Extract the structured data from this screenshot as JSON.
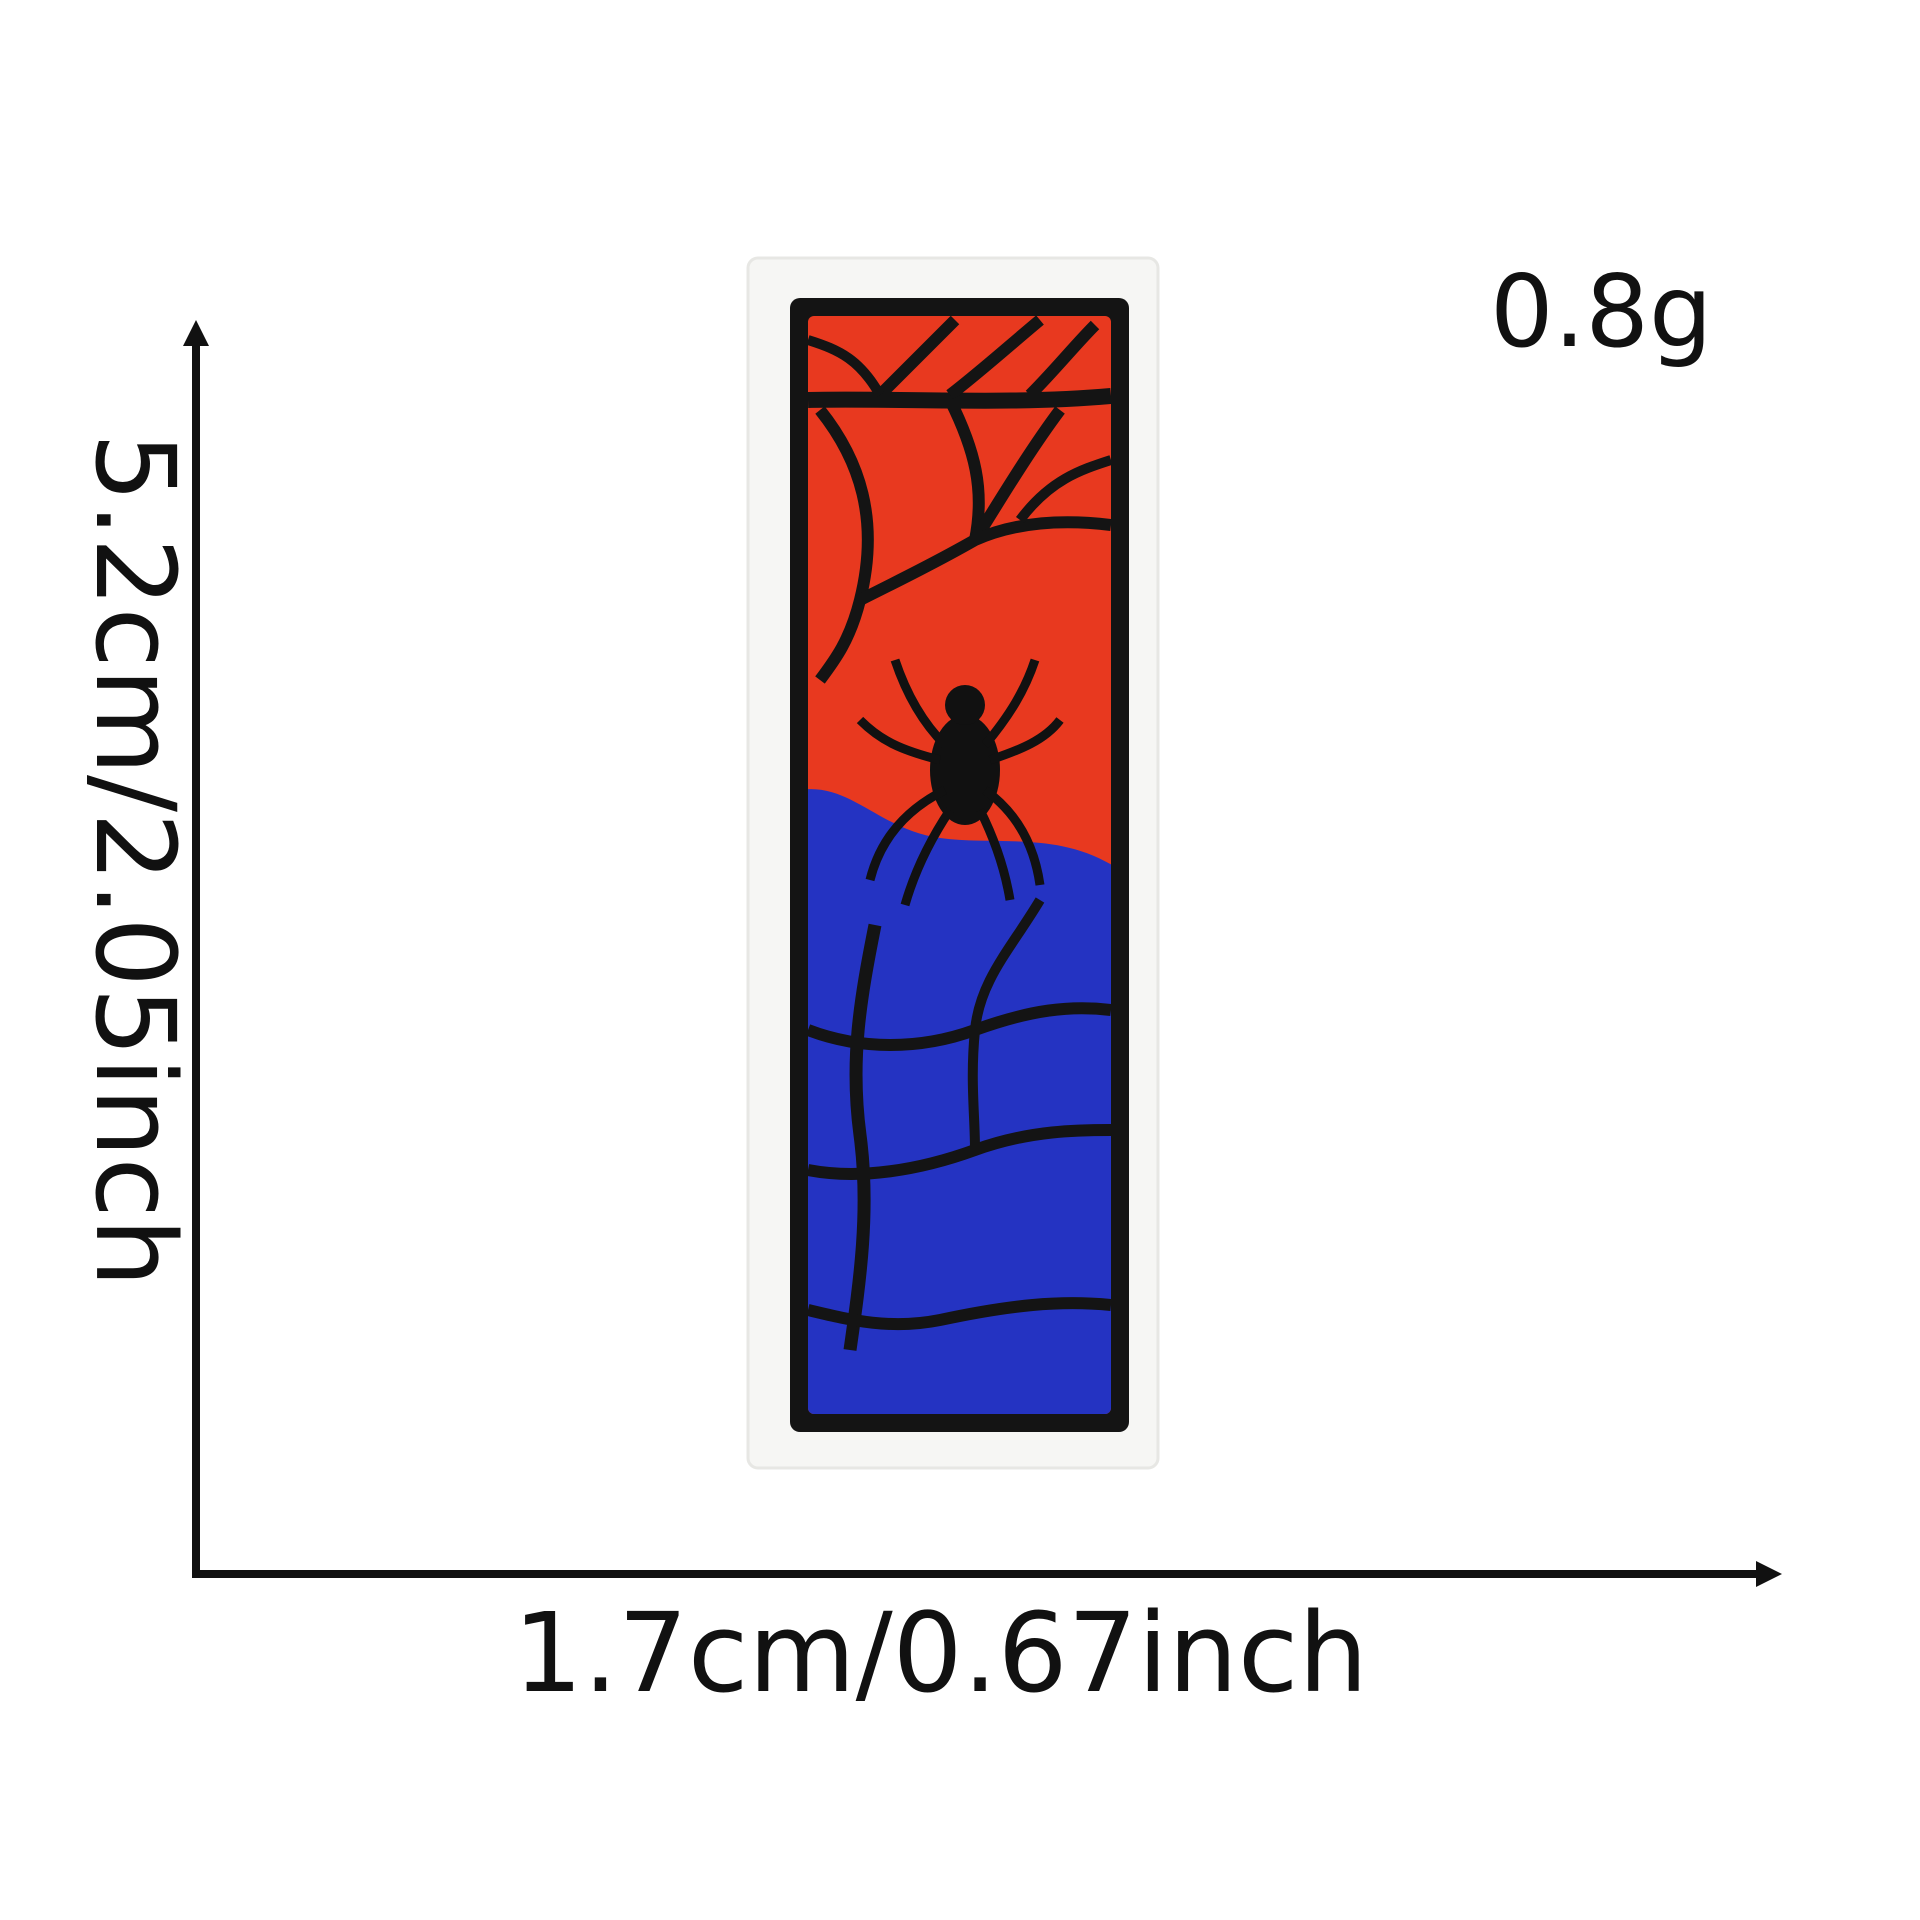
{
  "product": {
    "name": "embroidered-patch",
    "colors": {
      "backing": "#f6f6f4",
      "outline": "#141414",
      "top": "#e8391f",
      "bottom": "#2433c2",
      "spider": "#111111"
    }
  },
  "dimensions": {
    "width_label": "1.7cm/0.67inch",
    "height_label": "5.2cm/2.05inch",
    "weight_label": "0.8g"
  },
  "colors": {
    "line": "#111111",
    "text": "#111111"
  }
}
